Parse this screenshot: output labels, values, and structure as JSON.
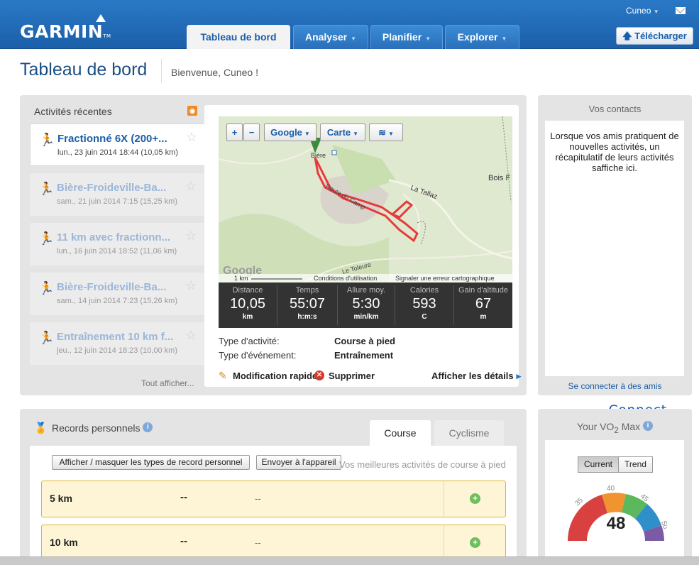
{
  "app": {
    "brand": "GARMIN",
    "product": "Connect",
    "tm": "TM"
  },
  "nav": {
    "tabs": [
      {
        "label": "Tableau de bord",
        "active": true
      },
      {
        "label": "Analyser"
      },
      {
        "label": "Planifier"
      },
      {
        "label": "Explorer"
      }
    ],
    "user": "Cuneo",
    "upload_label": "Télécharger"
  },
  "page": {
    "title": "Tableau de bord",
    "welcome": "Bienvenue, Cuneo !"
  },
  "recent": {
    "title": "Activités récentes",
    "show_all": "Tout afficher...",
    "items": [
      {
        "name": "Fractionné 6X (200+...",
        "date": "lun., 23 juin 2014 18:44 (10,05 km)"
      },
      {
        "name": "Bière-Froideville-Ba...",
        "date": "sam., 21 juin 2014 7:15 (15,25 km)"
      },
      {
        "name": "11 km avec fractionn...",
        "date": "lun., 16 juin 2014 18:52 (11,06 km)"
      },
      {
        "name": "Bière-Froideville-Ba...",
        "date": "sam., 14 juin 2014 7:23 (15,26 km)"
      },
      {
        "name": "Entraînement 10 km f...",
        "date": "jeu., 12 juin 2014 18:23 (10,00 km)"
      }
    ]
  },
  "map": {
    "zoom_in": "+",
    "zoom_out": "−",
    "provider": "Google",
    "type": "Carte",
    "labels": {
      "bois": "Bois F",
      "tallaz": "La Tallaz",
      "route": "Route du Camp",
      "toleure": "Le Toleure",
      "biere": "Bière"
    },
    "scale": "1 km",
    "terms": "Conditions d'utilisation",
    "report": "Signaler une erreur cartographique",
    "watermark": "Google"
  },
  "stats": [
    {
      "label": "Distance",
      "value": "10,05",
      "unit": "km"
    },
    {
      "label": "Temps",
      "value": "55:07",
      "unit": "h:m:s"
    },
    {
      "label": "Allure moy.",
      "value": "5:30",
      "unit": "min/km"
    },
    {
      "label": "Calories",
      "value": "593",
      "unit": "C"
    },
    {
      "label": "Gain d'altitude",
      "value": "67",
      "unit": "m"
    }
  ],
  "activity": {
    "type_label": "Type d'activité:",
    "type_value": "Course à pied",
    "event_label": "Type d'événement:",
    "event_value": "Entraînement",
    "quick_edit": "Modification rapide",
    "delete": "Supprimer",
    "details": "Afficher les détails"
  },
  "contacts": {
    "title": "Vos contacts",
    "text": "Lorsque vos amis pratiquent de nouvelles activités, un récapitulatif de leurs activités saffiche ici.",
    "connect": "Se connecter à des amis"
  },
  "records": {
    "title": "Records personnels",
    "tabs": [
      {
        "label": "Course",
        "active": true
      },
      {
        "label": "Cyclisme"
      }
    ],
    "toggle_types": "Afficher / masquer les types de record personnel",
    "send_device": "Envoyer à l'appareil",
    "subtitle": "Vos meilleures activités de course à pied",
    "rows": [
      {
        "distance": "5 km",
        "time": "--",
        "date": "--"
      },
      {
        "distance": "10 km",
        "time": "--",
        "date": "--"
      }
    ]
  },
  "vo2": {
    "title_pre": "Your VO",
    "title_sub": "2",
    "title_post": " Max",
    "toggle": [
      "Current",
      "Trend"
    ],
    "value": "48",
    "ticks": [
      "30",
      "35",
      "40",
      "45",
      "50"
    ],
    "colors": {
      "red": "#d94040",
      "orange": "#f0942f",
      "green": "#5cb85c",
      "blue": "#2f8fc8",
      "purple": "#7b5aa6"
    }
  }
}
